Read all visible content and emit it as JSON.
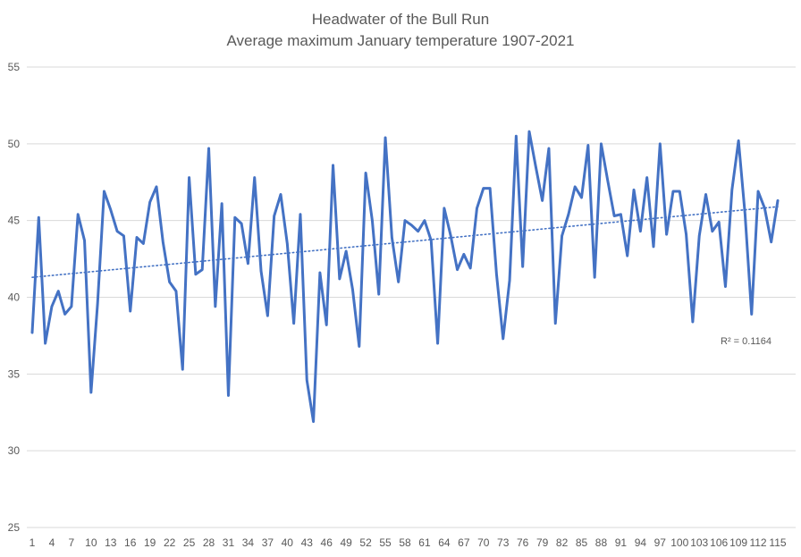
{
  "chart_data": {
    "type": "line",
    "title": "Headwater of the Bull Run",
    "subtitle": "Average maximum January temperature 1907-2021",
    "xlabel": "",
    "ylabel": "",
    "ylim": [
      25,
      55
    ],
    "yticks": [
      25,
      30,
      35,
      40,
      45,
      50,
      55
    ],
    "xticks": [
      1,
      4,
      7,
      10,
      13,
      16,
      19,
      22,
      25,
      28,
      31,
      34,
      37,
      40,
      43,
      46,
      49,
      52,
      55,
      58,
      61,
      64,
      67,
      70,
      73,
      76,
      79,
      82,
      85,
      88,
      91,
      94,
      97,
      100,
      103,
      106,
      109,
      112,
      115
    ],
    "grid": "horizontal",
    "legend": "none",
    "x": [
      1,
      2,
      3,
      4,
      5,
      6,
      7,
      8,
      9,
      10,
      11,
      12,
      13,
      14,
      15,
      16,
      17,
      18,
      19,
      20,
      21,
      22,
      23,
      24,
      25,
      26,
      27,
      28,
      29,
      30,
      31,
      32,
      33,
      34,
      35,
      36,
      37,
      38,
      39,
      40,
      41,
      42,
      43,
      44,
      45,
      46,
      47,
      48,
      49,
      50,
      51,
      52,
      53,
      54,
      55,
      56,
      57,
      58,
      59,
      60,
      61,
      62,
      63,
      64,
      65,
      66,
      67,
      68,
      69,
      70,
      71,
      72,
      73,
      74,
      75,
      76,
      77,
      78,
      79,
      80,
      81,
      82,
      83,
      84,
      85,
      86,
      87,
      88,
      89,
      90,
      91,
      92,
      93,
      94,
      95,
      96,
      97,
      98,
      99,
      100,
      101,
      102,
      103,
      104,
      105,
      106,
      107,
      108,
      109,
      110,
      111,
      112,
      113,
      114,
      115
    ],
    "series": [
      {
        "values": [
          37.7,
          45.2,
          37.0,
          39.4,
          40.4,
          38.9,
          39.4,
          45.4,
          43.7,
          33.8,
          39.6,
          46.9,
          45.7,
          44.3,
          44.0,
          39.1,
          43.9,
          43.5,
          46.2,
          47.2,
          43.6,
          41.0,
          40.4,
          35.3,
          47.8,
          41.5,
          41.8,
          49.7,
          39.4,
          46.1,
          33.6,
          45.2,
          44.8,
          42.2,
          47.8,
          41.7,
          38.8,
          45.3,
          46.7,
          43.5,
          38.3,
          45.4,
          34.6,
          31.9,
          41.6,
          38.2,
          48.6,
          41.2,
          43.0,
          40.5,
          36.8,
          48.1,
          45.0,
          40.2,
          50.4,
          43.9,
          41.0,
          45.0,
          44.7,
          44.3,
          45.0,
          43.7,
          37.0,
          45.8,
          44.0,
          41.8,
          42.8,
          41.9,
          45.8,
          47.1,
          47.1,
          41.5,
          37.3,
          41.1,
          50.5,
          42.0,
          50.8,
          48.5,
          46.3,
          49.7,
          38.3,
          44.0,
          45.4,
          47.2,
          46.5,
          49.9,
          41.3,
          50.0,
          47.6,
          45.3,
          45.4,
          42.7,
          47.0,
          44.3,
          47.8,
          43.3,
          50.0,
          44.1,
          46.9,
          46.9,
          44.1,
          38.4,
          44.0,
          46.7,
          44.3,
          44.9,
          40.7,
          47.0,
          50.2,
          45.4,
          38.9,
          46.9,
          45.8,
          43.6,
          46.3
        ]
      }
    ],
    "trendline": {
      "type": "linear",
      "start_value": 41.3,
      "end_value": 45.9,
      "r2_label": "R² = 0.1164"
    },
    "colors": {
      "series": "#4472c4",
      "trendline": "#4472c4",
      "grid": "#d9d9d9",
      "text": "#595959"
    }
  }
}
